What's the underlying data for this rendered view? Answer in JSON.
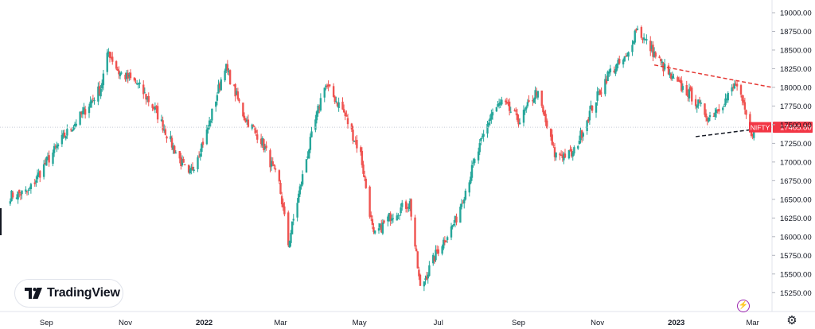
{
  "chart_data": {
    "type": "candlestick",
    "symbol": "NIFTY",
    "last_price_label": "17465.80",
    "last_price": 17465.8,
    "ylim": [
      15125,
      19000
    ],
    "y_ticks": [
      15250,
      15500,
      15750,
      16000,
      16250,
      16500,
      16750,
      17000,
      17250,
      17500,
      17750,
      18000,
      18250,
      18500,
      18750,
      19000
    ],
    "y_tick_labels": [
      "15250.00",
      "15500.00",
      "15750.00",
      "16000.00",
      "16250.00",
      "16500.00",
      "16750.00",
      "17000.00",
      "17250.00",
      "17500.00",
      "17750.00",
      "18000.00",
      "18250.00",
      "18500.00",
      "18750.00",
      "19000.00"
    ],
    "x_ticks": [
      "2021-09-01",
      "2021-11-01",
      "2022-01-01",
      "2022-03-01",
      "2022-05-01",
      "2022-07-01",
      "2022-09-01",
      "2022-11-01",
      "2023-01-01",
      "2023-03-01"
    ],
    "x_tick_labels": [
      "Sep",
      "Nov",
      "2022",
      "Mar",
      "May",
      "Jul",
      "Sep",
      "Nov",
      "2023",
      "Mar"
    ],
    "x_range": [
      "2021-08-01",
      "2023-03-16"
    ],
    "close_series": [
      [
        "2021-08-04",
        16550
      ],
      [
        "2021-08-18",
        16600
      ],
      [
        "2021-09-01",
        17000
      ],
      [
        "2021-09-15",
        17350
      ],
      [
        "2021-09-29",
        17650
      ],
      [
        "2021-10-13",
        18000
      ],
      [
        "2021-10-19",
        18480
      ],
      [
        "2021-10-27",
        18200
      ],
      [
        "2021-11-10",
        18050
      ],
      [
        "2021-11-24",
        17700
      ],
      [
        "2021-12-08",
        17200
      ],
      [
        "2021-12-20",
        16800
      ],
      [
        "2022-01-03",
        17400
      ],
      [
        "2022-01-17",
        18300
      ],
      [
        "2022-02-01",
        17600
      ],
      [
        "2022-02-14",
        17300
      ],
      [
        "2022-02-28",
        16700
      ],
      [
        "2022-03-07",
        15900
      ],
      [
        "2022-03-21",
        17050
      ],
      [
        "2022-04-04",
        18050
      ],
      [
        "2022-04-18",
        17700
      ],
      [
        "2022-05-02",
        17100
      ],
      [
        "2022-05-12",
        16000
      ],
      [
        "2022-05-26",
        16300
      ],
      [
        "2022-06-09",
        16450
      ],
      [
        "2022-06-17",
        15300
      ],
      [
        "2022-06-30",
        15800
      ],
      [
        "2022-07-14",
        16200
      ],
      [
        "2022-07-28",
        16950
      ],
      [
        "2022-08-11",
        17650
      ],
      [
        "2022-08-19",
        17800
      ],
      [
        "2022-09-02",
        17550
      ],
      [
        "2022-09-15",
        17950
      ],
      [
        "2022-09-29",
        17100
      ],
      [
        "2022-10-13",
        17100
      ],
      [
        "2022-10-27",
        17700
      ],
      [
        "2022-11-10",
        18200
      ],
      [
        "2022-11-24",
        18400
      ],
      [
        "2022-12-01",
        18800
      ],
      [
        "2022-12-15",
        18450
      ],
      [
        "2022-12-29",
        18100
      ],
      [
        "2023-01-12",
        17900
      ],
      [
        "2023-01-26",
        17600
      ],
      [
        "2023-02-09",
        17850
      ],
      [
        "2023-02-16",
        18050
      ],
      [
        "2023-02-28",
        17400
      ],
      [
        "2023-03-06",
        17465.8
      ]
    ],
    "annotations": [
      {
        "type": "trendline",
        "style": "dashed",
        "color": "#e53935",
        "from": [
          "2022-12-15",
          18300
        ],
        "to": [
          "2023-03-16",
          18000
        ]
      },
      {
        "type": "trendline",
        "style": "dashed",
        "color": "#131722",
        "from": [
          "2023-01-16",
          17340
        ],
        "to": [
          "2023-03-08",
          17450
        ]
      }
    ],
    "grid": false,
    "colors": {
      "up": "#26a69a",
      "down": "#ef5350",
      "price_tag": "#f23645"
    }
  },
  "branding": {
    "logo_text": "TradingView"
  },
  "icons": {
    "logo": "tradingview-logo-icon",
    "bolt": "lightning-icon",
    "settings": "gear-icon"
  }
}
